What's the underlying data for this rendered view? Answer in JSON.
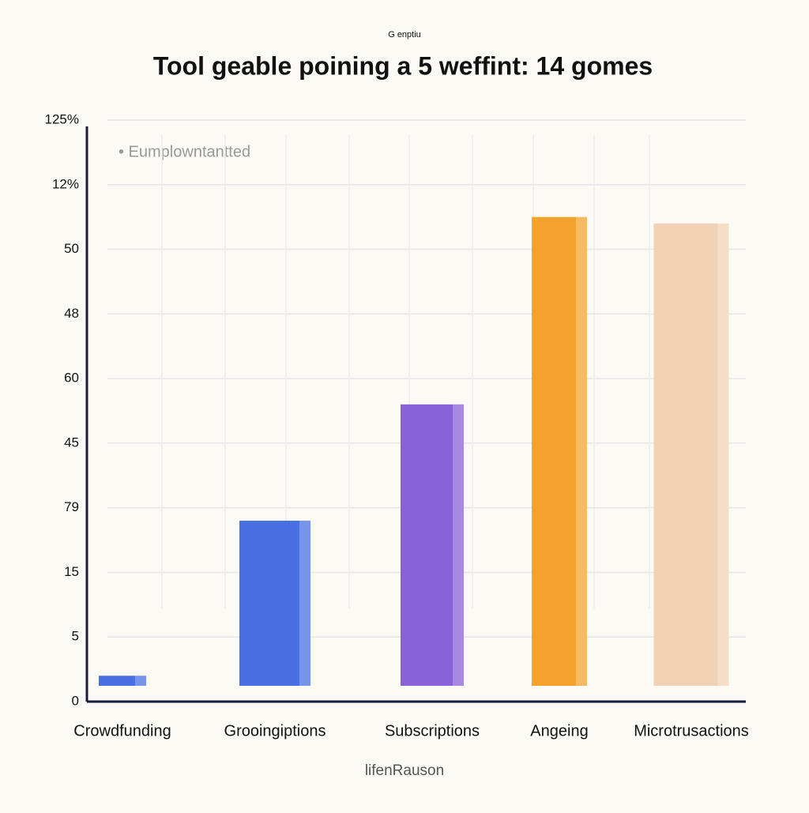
{
  "chart_data": {
    "type": "bar",
    "brand": "G enptiu",
    "title": "Tool geable poining a 5 weffint: 14 gomes",
    "legend_label": "• Eumplowntantted",
    "footer": "lifenRauson",
    "categories": [
      "Crowdfunding",
      "Grooingiptions",
      "Subscriptions",
      "Angeing",
      "Microtrusactions"
    ],
    "values": [
      0.4,
      2.8,
      4.6,
      7.5,
      7.4
    ],
    "colors": [
      "#4a6fe3",
      "#4a6fe3",
      "#8a62d8",
      "#f3a32e",
      "#f2d2b4"
    ],
    "ylim": [
      0,
      9
    ],
    "y_tick_labels": [
      "0",
      "5",
      "15",
      "79",
      "45",
      "60",
      "48",
      "50",
      "12%",
      "125%"
    ],
    "grid": true
  }
}
